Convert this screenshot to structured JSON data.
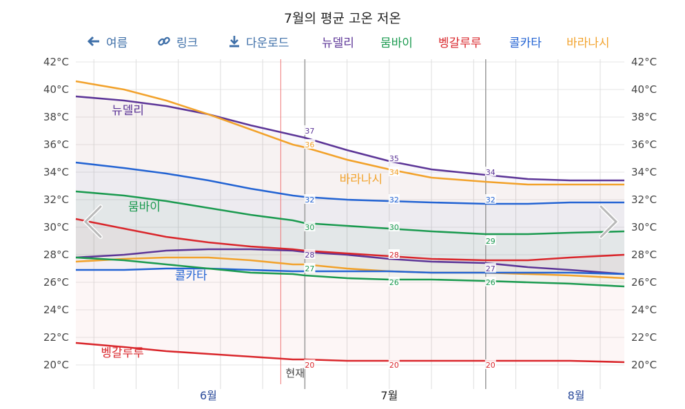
{
  "title": "7월의 평균 고온 저온",
  "toolbar": {
    "back_label": "여름",
    "link_label": "링크",
    "download_label": "다운로드"
  },
  "now_label": "현재",
  "colors": {
    "뉴델리": "#5c3597",
    "뭄바이": "#1a9a4f",
    "벵갈루루": "#d9262b",
    "콜카타": "#2263d3",
    "바라나시": "#f2a22b"
  },
  "chart_data": {
    "type": "line",
    "title": "7월의 평균 고온 저온",
    "y_unit": "°C",
    "ylim": [
      19,
      43
    ],
    "y_ticks": [
      "42°C",
      "40°C",
      "38°C",
      "36°C",
      "34°C",
      "32°C",
      "30°C",
      "28°C",
      "26°C",
      "24°C",
      "22°C",
      "20°C"
    ],
    "y_tick_values": [
      42,
      40,
      38,
      36,
      34,
      32,
      30,
      28,
      26,
      24,
      22,
      20
    ],
    "x_domain": [
      "2024-05-24",
      "2024-08-23"
    ],
    "months": [
      {
        "label": "6월",
        "date": "2024-06-15",
        "color": "#2a4a9a"
      },
      {
        "label": "7월",
        "date": "2024-07-15",
        "color": "#222222"
      },
      {
        "label": "8월",
        "date": "2024-08-15",
        "color": "#2a4a9a"
      }
    ],
    "highlight_start": "2024-07-01",
    "highlight_end": "2024-07-31",
    "now_date": "2024-06-27",
    "grid": true,
    "series": [
      {
        "name": "뉴델리",
        "kind": "high",
        "label_pos": [
          0.095,
          38.2
        ],
        "x": [
          "2024-05-24",
          "2024-06-01",
          "2024-06-08",
          "2024-06-15",
          "2024-06-22",
          "2024-06-29",
          "2024-07-01",
          "2024-07-08",
          "2024-07-15",
          "2024-07-22",
          "2024-07-31",
          "2024-08-07",
          "2024-08-14",
          "2024-08-23"
        ],
        "values": [
          39.5,
          39.2,
          38.8,
          38.2,
          37.4,
          36.7,
          36.5,
          35.6,
          34.8,
          34.2,
          33.8,
          33.5,
          33.4,
          33.4
        ],
        "labels": [
          {
            "date": "2024-07-01",
            "value": 37,
            "text": "37"
          },
          {
            "date": "2024-07-15",
            "value": 35,
            "text": "35"
          },
          {
            "date": "2024-07-31",
            "value": 34,
            "text": "34"
          }
        ]
      },
      {
        "name": "뉴델리",
        "kind": "low",
        "x": [
          "2024-05-24",
          "2024-06-01",
          "2024-06-08",
          "2024-06-15",
          "2024-06-22",
          "2024-06-29",
          "2024-07-01",
          "2024-07-08",
          "2024-07-15",
          "2024-07-22",
          "2024-07-31",
          "2024-08-07",
          "2024-08-14",
          "2024-08-23"
        ],
        "values": [
          27.8,
          28.0,
          28.3,
          28.4,
          28.4,
          28.3,
          28.2,
          28.0,
          27.7,
          27.5,
          27.4,
          27.1,
          26.9,
          26.6
        ],
        "labels": [
          {
            "date": "2024-07-01",
            "value": 28,
            "text": "28"
          },
          {
            "date": "2024-07-15",
            "value": 28,
            "text": "28"
          },
          {
            "date": "2024-07-31",
            "value": 27,
            "text": "27"
          }
        ]
      },
      {
        "name": "바라나시",
        "kind": "high",
        "label_pos": [
          0.52,
          33.2
        ],
        "x": [
          "2024-05-24",
          "2024-06-01",
          "2024-06-08",
          "2024-06-15",
          "2024-06-22",
          "2024-06-29",
          "2024-07-01",
          "2024-07-08",
          "2024-07-15",
          "2024-07-22",
          "2024-07-31",
          "2024-08-07",
          "2024-08-14",
          "2024-08-23"
        ],
        "values": [
          40.6,
          40.0,
          39.2,
          38.2,
          37.1,
          36.0,
          35.8,
          34.9,
          34.2,
          33.6,
          33.3,
          33.1,
          33.1,
          33.1
        ],
        "labels": [
          {
            "date": "2024-07-01",
            "value": 36,
            "text": "36"
          },
          {
            "date": "2024-07-15",
            "value": 34,
            "text": "34"
          }
        ]
      },
      {
        "name": "바라나시",
        "kind": "low",
        "x": [
          "2024-05-24",
          "2024-06-01",
          "2024-06-08",
          "2024-06-15",
          "2024-06-22",
          "2024-06-29",
          "2024-07-01",
          "2024-07-08",
          "2024-07-15",
          "2024-07-22",
          "2024-07-31",
          "2024-08-07",
          "2024-08-14",
          "2024-08-23"
        ],
        "values": [
          27.5,
          27.7,
          27.8,
          27.8,
          27.6,
          27.3,
          27.3,
          27.0,
          26.8,
          26.7,
          26.7,
          26.6,
          26.5,
          26.3
        ],
        "labels": [
          {
            "date": "2024-07-01",
            "value": 27,
            "text": "27"
          }
        ]
      },
      {
        "name": "콜카타",
        "kind": "high",
        "x": [
          "2024-05-24",
          "2024-06-01",
          "2024-06-08",
          "2024-06-15",
          "2024-06-22",
          "2024-06-29",
          "2024-07-01",
          "2024-07-08",
          "2024-07-15",
          "2024-07-22",
          "2024-07-31",
          "2024-08-07",
          "2024-08-14",
          "2024-08-23"
        ],
        "values": [
          34.7,
          34.3,
          33.9,
          33.4,
          32.8,
          32.3,
          32.2,
          32.0,
          31.9,
          31.8,
          31.7,
          31.7,
          31.8,
          31.8
        ],
        "labels": [
          {
            "date": "2024-07-01",
            "value": 32,
            "text": "32"
          },
          {
            "date": "2024-07-15",
            "value": 32,
            "text": "32"
          },
          {
            "date": "2024-07-31",
            "value": 32,
            "text": "32"
          }
        ]
      },
      {
        "name": "콜카타",
        "kind": "low",
        "label_pos": [
          0.21,
          26.2
        ],
        "x": [
          "2024-05-24",
          "2024-06-01",
          "2024-06-08",
          "2024-06-15",
          "2024-06-22",
          "2024-06-29",
          "2024-07-01",
          "2024-07-08",
          "2024-07-15",
          "2024-07-22",
          "2024-07-31",
          "2024-08-07",
          "2024-08-14",
          "2024-08-23"
        ],
        "values": [
          26.9,
          26.9,
          27.0,
          27.0,
          26.9,
          26.8,
          26.8,
          26.8,
          26.8,
          26.7,
          26.7,
          26.7,
          26.7,
          26.6
        ],
        "labels": []
      },
      {
        "name": "뭄바이",
        "kind": "high",
        "label_pos": [
          0.125,
          31.2
        ],
        "x": [
          "2024-05-24",
          "2024-06-01",
          "2024-06-08",
          "2024-06-15",
          "2024-06-22",
          "2024-06-29",
          "2024-07-01",
          "2024-07-08",
          "2024-07-15",
          "2024-07-22",
          "2024-07-31",
          "2024-08-07",
          "2024-08-14",
          "2024-08-23"
        ],
        "values": [
          32.6,
          32.3,
          31.9,
          31.4,
          30.9,
          30.5,
          30.3,
          30.1,
          29.9,
          29.7,
          29.5,
          29.5,
          29.6,
          29.7
        ],
        "labels": [
          {
            "date": "2024-07-01",
            "value": 30,
            "text": "30"
          },
          {
            "date": "2024-07-15",
            "value": 30,
            "text": "30"
          },
          {
            "date": "2024-07-31",
            "value": 29,
            "text": "29"
          }
        ]
      },
      {
        "name": "뭄바이",
        "kind": "low",
        "x": [
          "2024-05-24",
          "2024-06-01",
          "2024-06-08",
          "2024-06-15",
          "2024-06-22",
          "2024-06-29",
          "2024-07-01",
          "2024-07-08",
          "2024-07-15",
          "2024-07-22",
          "2024-07-31",
          "2024-08-07",
          "2024-08-14",
          "2024-08-23"
        ],
        "values": [
          27.8,
          27.6,
          27.3,
          27.0,
          26.7,
          26.6,
          26.5,
          26.3,
          26.2,
          26.2,
          26.1,
          26.0,
          25.9,
          25.7
        ],
        "labels": [
          {
            "date": "2024-07-01",
            "value": 27,
            "text": "27"
          },
          {
            "date": "2024-07-15",
            "value": 26,
            "text": "26"
          },
          {
            "date": "2024-07-31",
            "value": 26,
            "text": "26"
          }
        ]
      },
      {
        "name": "벵갈루루",
        "kind": "high",
        "x": [
          "2024-05-24",
          "2024-06-01",
          "2024-06-08",
          "2024-06-15",
          "2024-06-22",
          "2024-06-29",
          "2024-07-01",
          "2024-07-08",
          "2024-07-15",
          "2024-07-22",
          "2024-07-31",
          "2024-08-07",
          "2024-08-14",
          "2024-08-23"
        ],
        "values": [
          30.6,
          29.9,
          29.3,
          28.9,
          28.6,
          28.4,
          28.3,
          28.1,
          27.9,
          27.7,
          27.6,
          27.6,
          27.8,
          28.0
        ],
        "labels": [
          {
            "date": "2024-07-15",
            "value": 28,
            "text": "28"
          }
        ]
      },
      {
        "name": "벵갈루루",
        "kind": "low",
        "label_pos": [
          0.085,
          20.6
        ],
        "x": [
          "2024-05-24",
          "2024-06-01",
          "2024-06-08",
          "2024-06-15",
          "2024-06-22",
          "2024-06-29",
          "2024-07-01",
          "2024-07-08",
          "2024-07-15",
          "2024-07-22",
          "2024-07-31",
          "2024-08-07",
          "2024-08-14",
          "2024-08-23"
        ],
        "values": [
          21.6,
          21.3,
          21.0,
          20.8,
          20.6,
          20.4,
          20.4,
          20.3,
          20.3,
          20.3,
          20.3,
          20.3,
          20.3,
          20.2
        ],
        "labels": [
          {
            "date": "2024-07-01",
            "value": 20,
            "text": "20"
          },
          {
            "date": "2024-07-15",
            "value": 20,
            "text": "20"
          },
          {
            "date": "2024-07-31",
            "value": 20,
            "text": "20"
          }
        ]
      }
    ]
  },
  "legend_items": [
    "뉴델리",
    "뭄바이",
    "벵갈루루",
    "콜카타",
    "바라나시"
  ]
}
